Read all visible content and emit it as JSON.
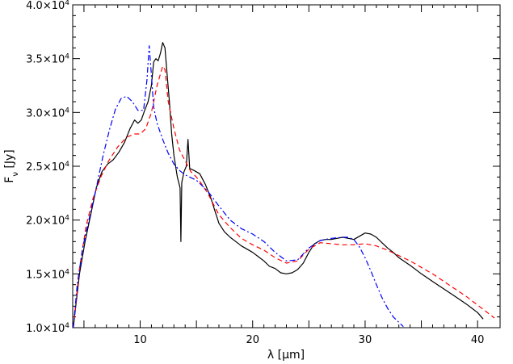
{
  "chart_data": {
    "type": "line",
    "xlabel": "λ [μm]",
    "ylabel": "F_ν [Jy]",
    "xlim": [
      4,
      42
    ],
    "ylim": [
      10000,
      40000
    ],
    "grid": false,
    "legend": "none",
    "x_ticks": [
      {
        "value": 10,
        "label": "10"
      },
      {
        "value": 20,
        "label": "20"
      },
      {
        "value": 30,
        "label": "30"
      },
      {
        "value": 40,
        "label": "40"
      }
    ],
    "y_ticks": [
      {
        "value": 10000,
        "mantissa": "1.0",
        "base": "×10",
        "exp": "4"
      },
      {
        "value": 15000,
        "mantissa": "1.5",
        "base": "×10",
        "exp": "4"
      },
      {
        "value": 20000,
        "mantissa": "2.0",
        "base": "×10",
        "exp": "4"
      },
      {
        "value": 25000,
        "mantissa": "2.5",
        "base": "×10",
        "exp": "4"
      },
      {
        "value": 30000,
        "mantissa": "3.0",
        "base": "×10",
        "exp": "4"
      },
      {
        "value": 35000,
        "mantissa": "3.5",
        "base": "×10",
        "exp": "4"
      },
      {
        "value": 40000,
        "mantissa": "4.0",
        "base": "×10",
        "exp": "4"
      }
    ],
    "series": [
      {
        "style": "solid",
        "color": "#000000",
        "points": [
          [
            4.05,
            10000
          ],
          [
            4.6,
            15000
          ],
          [
            5.1,
            18000
          ],
          [
            5.6,
            20500
          ],
          [
            6.1,
            23000
          ],
          [
            6.6,
            24500
          ],
          [
            7.1,
            25200
          ],
          [
            7.6,
            25600
          ],
          [
            8.1,
            26300
          ],
          [
            8.6,
            27200
          ],
          [
            9.1,
            28500
          ],
          [
            9.5,
            29300
          ],
          [
            9.8,
            29000
          ],
          [
            10.1,
            29300
          ],
          [
            10.4,
            30200
          ],
          [
            10.7,
            31000
          ],
          [
            11.0,
            32500
          ],
          [
            11.2,
            34700
          ],
          [
            11.4,
            35000
          ],
          [
            11.6,
            34800
          ],
          [
            11.8,
            35500
          ],
          [
            12.0,
            36500
          ],
          [
            12.2,
            36000
          ],
          [
            12.4,
            33500
          ],
          [
            12.6,
            31000
          ],
          [
            12.8,
            28000
          ],
          [
            13.0,
            26000
          ],
          [
            13.3,
            24000
          ],
          [
            13.55,
            23000
          ],
          [
            13.62,
            18000
          ],
          [
            13.7,
            23500
          ],
          [
            13.9,
            24500
          ],
          [
            14.1,
            25000
          ],
          [
            14.25,
            27500
          ],
          [
            14.4,
            24800
          ],
          [
            14.8,
            24600
          ],
          [
            15.3,
            24300
          ],
          [
            15.8,
            23300
          ],
          [
            16.3,
            22000
          ],
          [
            16.6,
            21000
          ],
          [
            17.0,
            19700
          ],
          [
            17.5,
            18900
          ],
          [
            18.0,
            18400
          ],
          [
            18.5,
            18000
          ],
          [
            19.0,
            17600
          ],
          [
            19.5,
            17300
          ],
          [
            20.0,
            17000
          ],
          [
            20.5,
            16600
          ],
          [
            21.0,
            16200
          ],
          [
            21.5,
            15700
          ],
          [
            22.0,
            15500
          ],
          [
            22.5,
            15100
          ],
          [
            23.0,
            15000
          ],
          [
            23.5,
            15100
          ],
          [
            24.0,
            15400
          ],
          [
            24.5,
            16000
          ],
          [
            25.0,
            17000
          ],
          [
            25.5,
            17800
          ],
          [
            26.0,
            18100
          ],
          [
            26.5,
            18200
          ],
          [
            27.0,
            18200
          ],
          [
            27.5,
            18300
          ],
          [
            28.0,
            18400
          ],
          [
            28.5,
            18300
          ],
          [
            29.0,
            18200
          ],
          [
            29.5,
            18500
          ],
          [
            30.0,
            18800
          ],
          [
            30.5,
            18700
          ],
          [
            31.0,
            18400
          ],
          [
            31.5,
            17900
          ],
          [
            32.0,
            17400
          ],
          [
            32.5,
            17000
          ],
          [
            33.0,
            16500
          ],
          [
            34.0,
            15800
          ],
          [
            35.0,
            15000
          ],
          [
            36.0,
            14300
          ],
          [
            37.0,
            13600
          ],
          [
            38.0,
            12900
          ],
          [
            39.0,
            12200
          ],
          [
            40.0,
            11400
          ],
          [
            40.5,
            10800
          ]
        ]
      },
      {
        "style": "dashed",
        "color": "#ff0000",
        "points": [
          [
            4.05,
            10000
          ],
          [
            4.6,
            15500
          ],
          [
            5.2,
            19500
          ],
          [
            5.8,
            22000
          ],
          [
            6.5,
            24000
          ],
          [
            7.2,
            25500
          ],
          [
            8.0,
            26800
          ],
          [
            8.8,
            27700
          ],
          [
            9.5,
            28000
          ],
          [
            10.0,
            28000
          ],
          [
            10.5,
            28500
          ],
          [
            11.0,
            30000
          ],
          [
            11.5,
            32500
          ],
          [
            12.0,
            34300
          ],
          [
            12.2,
            34000
          ],
          [
            12.5,
            31000
          ],
          [
            13.0,
            28500
          ],
          [
            13.5,
            26500
          ],
          [
            14.0,
            25500
          ],
          [
            14.5,
            24500
          ],
          [
            15.0,
            24000
          ],
          [
            15.5,
            23300
          ],
          [
            16.0,
            22500
          ],
          [
            16.5,
            21500
          ],
          [
            17.0,
            20500
          ],
          [
            18.0,
            19300
          ],
          [
            19.0,
            18300
          ],
          [
            20.0,
            17700
          ],
          [
            21.0,
            17200
          ],
          [
            22.0,
            16500
          ],
          [
            23.0,
            16000
          ],
          [
            24.0,
            16200
          ],
          [
            25.0,
            17300
          ],
          [
            26.0,
            17900
          ],
          [
            27.0,
            17800
          ],
          [
            28.0,
            17700
          ],
          [
            29.0,
            17700
          ],
          [
            30.0,
            17800
          ],
          [
            31.0,
            17600
          ],
          [
            32.0,
            17200
          ],
          [
            33.0,
            16700
          ],
          [
            34.0,
            16200
          ],
          [
            35.0,
            15600
          ],
          [
            36.0,
            15000
          ],
          [
            37.0,
            14300
          ],
          [
            38.0,
            13600
          ],
          [
            39.0,
            12900
          ],
          [
            40.0,
            12100
          ],
          [
            41.0,
            11300
          ],
          [
            41.5,
            10900
          ]
        ]
      },
      {
        "style": "dashdot",
        "color": "#0000ff",
        "points": [
          [
            4.05,
            10000
          ],
          [
            4.4,
            14000
          ],
          [
            4.9,
            17500
          ],
          [
            5.5,
            20300
          ],
          [
            6.1,
            23000
          ],
          [
            6.7,
            26000
          ],
          [
            7.3,
            28500
          ],
          [
            7.8,
            30300
          ],
          [
            8.3,
            31300
          ],
          [
            8.8,
            31500
          ],
          [
            9.3,
            31000
          ],
          [
            9.8,
            30200
          ],
          [
            10.3,
            30200
          ],
          [
            10.6,
            33000
          ],
          [
            10.8,
            36200
          ],
          [
            11.0,
            33500
          ],
          [
            11.2,
            30500
          ],
          [
            11.5,
            29000
          ],
          [
            12.0,
            27500
          ],
          [
            12.5,
            26200
          ],
          [
            13.0,
            25200
          ],
          [
            13.5,
            24600
          ],
          [
            14.0,
            24200
          ],
          [
            15.0,
            23700
          ],
          [
            16.0,
            22700
          ],
          [
            17.0,
            21300
          ],
          [
            18.0,
            20000
          ],
          [
            19.0,
            19200
          ],
          [
            20.0,
            18700
          ],
          [
            21.0,
            18000
          ],
          [
            22.0,
            17000
          ],
          [
            23.0,
            16200
          ],
          [
            24.0,
            16300
          ],
          [
            25.0,
            17400
          ],
          [
            26.0,
            18100
          ],
          [
            27.0,
            18300
          ],
          [
            28.0,
            18400
          ],
          [
            28.5,
            18400
          ],
          [
            29.0,
            18200
          ],
          [
            29.5,
            17500
          ],
          [
            30.0,
            16500
          ],
          [
            30.5,
            15300
          ],
          [
            31.0,
            14000
          ],
          [
            31.5,
            12800
          ],
          [
            32.0,
            11800
          ],
          [
            32.5,
            11000
          ],
          [
            33.0,
            10500
          ],
          [
            33.4,
            10100
          ]
        ]
      }
    ]
  }
}
